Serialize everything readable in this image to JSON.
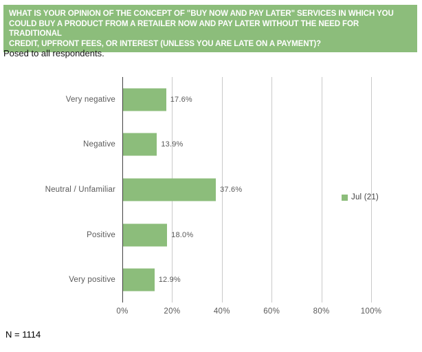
{
  "header": {
    "question_lines": [
      "WHAT IS YOUR OPINION OF THE CONCEPT OF \"BUY NOW AND PAY LATER\" SERVICES IN WHICH YOU",
      "COULD BUY A PRODUCT FROM A RETAILER NOW AND PAY LATER WITHOUT THE NEED FOR TRADITIONAL",
      "CREDIT, UPFRONT FEES, OR INTEREST (UNLESS YOU ARE LATE ON A PAYMENT)?"
    ],
    "bg_color": "#8CBD7B",
    "text_color": "#FFFFFF"
  },
  "subtitle": "Posed to all respondents.",
  "footnote": "N = 1114",
  "chart_data": {
    "type": "bar",
    "orientation": "horizontal",
    "title": "",
    "categories": [
      "Very negative",
      "Negative",
      "Neutral / Unfamiliar",
      "Positive",
      "Very positive"
    ],
    "series": [
      {
        "name": "Jul (21)",
        "color": "#8CBD7B",
        "values": [
          17.6,
          13.9,
          37.6,
          18.0,
          12.9
        ]
      }
    ],
    "value_labels": [
      "17.6%",
      "13.9%",
      "37.6%",
      "18.0%",
      "12.9%"
    ],
    "x_axis": {
      "range": [
        0,
        100
      ],
      "tick_values": [
        0,
        20,
        40,
        60,
        80,
        100
      ],
      "tick_labels": [
        "0%",
        "20%",
        "40%",
        "60%",
        "80%",
        "100%"
      ]
    },
    "grid": true,
    "legend": {
      "position": "right",
      "entries": [
        "Jul (21)"
      ]
    },
    "colors": {
      "grid_line": "#C9C9C9",
      "axis_line": "#404040",
      "label_text": "#595959"
    }
  }
}
